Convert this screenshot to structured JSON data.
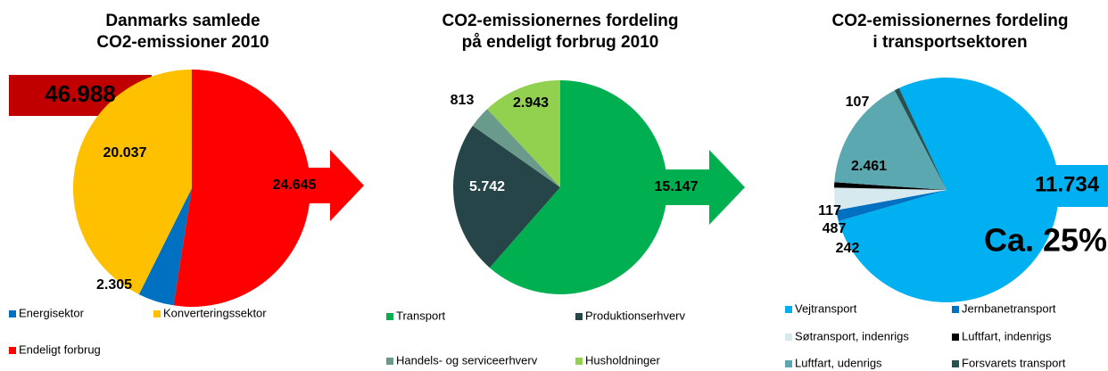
{
  "chart_data": [
    {
      "type": "pie",
      "title": [
        "Danmarks samlede",
        "CO2-emissioner 2010"
      ],
      "categories": [
        "Energisektor",
        "Konverteringssektor",
        "Endeligt forbrug"
      ],
      "values": [
        2305,
        20037,
        24645
      ],
      "value_labels": [
        "2.305",
        "20.037",
        "24.645"
      ],
      "colors": [
        "#0070c0",
        "#ffc000",
        "#ff0000"
      ],
      "annotations": [
        "46.988"
      ]
    },
    {
      "type": "pie",
      "title": [
        "CO2-emissionernes fordeling",
        "på endeligt forbrug 2010"
      ],
      "categories": [
        "Transport",
        "Produktionserhverv",
        "Handels- og serviceerhverv",
        "Husholdninger"
      ],
      "values": [
        15147,
        5742,
        813,
        2943
      ],
      "value_labels": [
        "15.147",
        "5.742",
        "813",
        "2.943"
      ],
      "colors": [
        "#00b050",
        "#254549",
        "#6a9a8c",
        "#92d050"
      ]
    },
    {
      "type": "pie",
      "title": [
        "CO2-emissionernes fordeling",
        "i transportsektoren"
      ],
      "categories": [
        "Vejtransport",
        "Jernbanetransport",
        "Søtransport, indenrigs",
        "Luftfart, indenrigs",
        "Luftfart, udenrigs",
        "Forsvarets transport"
      ],
      "values": [
        11734,
        242,
        487,
        117,
        2461,
        107
      ],
      "value_labels": [
        "11.734",
        "242",
        "487",
        "117",
        "2.461",
        "107"
      ],
      "colors": [
        "#00b0f0",
        "#0070c0",
        "#d5e9ee",
        "#000000",
        "#5ba8b0",
        "#27504f"
      ],
      "annotations": [
        "Ca. 25%"
      ]
    }
  ]
}
